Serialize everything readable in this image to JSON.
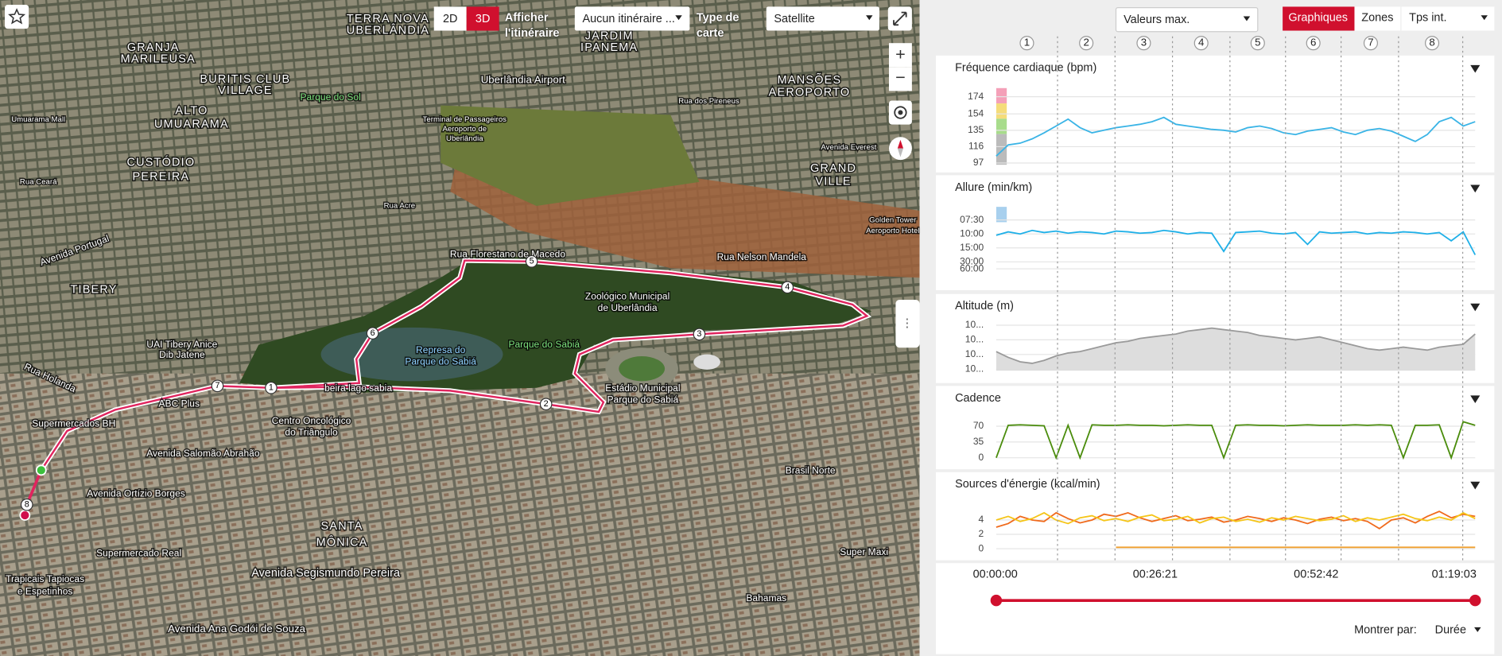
{
  "toolbar": {
    "view_2d": "2D",
    "view_3d": "3D",
    "show_route_label": "Afficher l'itinéraire",
    "route_select": "Aucun itinéraire ...",
    "map_type_label": "Type de carte",
    "map_type_select": "Satellite",
    "zoom_in": "+",
    "zoom_out": "−"
  },
  "map": {
    "labels": [
      "TERRA NOVA",
      "UBERLÂNDIA",
      "GRANJA",
      "MARILEUSA",
      "BURITIS CLUB",
      "VILLAGE",
      "ALTO",
      "UMUARAMA",
      "CUSTÓDIO",
      "PEREIRA",
      "TIBERY",
      "JARDIM",
      "IPANEMA",
      "Uberlândia Airport",
      "MANSÕES",
      "AEROPORTO",
      "GRAND",
      "VILLE",
      "Parque do Sol",
      "Terminal de Passageiros",
      "Aeroporto de",
      "Uberlândia",
      "Rua Florestano de Macedo",
      "Rua Nelson Mandela",
      "Zoológico Municipal",
      "de Uberlândia",
      "Represa do",
      "Parque do Sabiá",
      "Parque do Sabiá",
      "Estádio Municipal",
      "Parque do Sabiá",
      "beira lago sabia",
      "Centro Oncológico",
      "do Triângulo",
      "ABC Plus",
      "Supermercados BH",
      "UAI Tibery Anice",
      "Dib Jatene",
      "Avenida Salomão Abrahão",
      "Avenida Ortízio Borges",
      "SANTA",
      "MÔNICA",
      "Supermercado Real",
      "Avenida Segismundo Pereira",
      "Trapicais Tapiocas",
      "e Espetinhos",
      "Brasil Norte",
      "Super Maxi",
      "Bahamas",
      "Avenida Ana Godói de Souza",
      "Rua Holanda",
      "Avenida Portugal",
      "Golden Tower",
      "Aeroporto Hotel",
      "Avenida Everest",
      "Rua dos Pireneus",
      "Umuarama Mall",
      "Rua Acre",
      "Rua Ceará"
    ],
    "lap_markers": [
      "1",
      "2",
      "3",
      "4",
      "5",
      "6",
      "7",
      "8"
    ]
  },
  "sidebar": {
    "value_select": "Valeurs max.",
    "tabs": [
      "Graphiques",
      "Zones",
      "Tps int."
    ],
    "laps": [
      "1",
      "2",
      "3",
      "4",
      "5",
      "6",
      "7",
      "8"
    ],
    "panels": [
      {
        "title": "Fréquence cardiaque (bpm)",
        "ylim": [
          95,
          184
        ],
        "yticks": [
          174,
          154,
          135,
          116,
          97
        ],
        "fill": false,
        "series": [
          {
            "color": "#3ab4e6",
            "values": [
              105,
              118,
              120,
              125,
              132,
              140,
              148,
              138,
              132,
              135,
              138,
              140,
              142,
              145,
              150,
              142,
              140,
              138,
              136,
              135,
              133,
              138,
              140,
              137,
              132,
              130,
              134,
              136,
              138,
              133,
              130,
              135,
              137,
              134,
              128,
              122,
              130,
              145,
              150,
              140,
              145
            ]
          }
        ]
      },
      {
        "title": "Allure (min/km)",
        "ylim": [
          0,
          9.6
        ],
        "yticks": [
          {
            "value": 8,
            "label": "07:30"
          },
          {
            "value": 6,
            "label": "10:00"
          },
          {
            "value": 4,
            "label": "15:00"
          },
          {
            "value": 2,
            "label": "30:00"
          },
          {
            "value": 1,
            "label": "60:00"
          }
        ],
        "fill": false,
        "series": [
          {
            "color": "#1fb0e8",
            "values": [
              5.8,
              6.3,
              6.0,
              6.5,
              6.2,
              6.4,
              6.1,
              6.3,
              6.2,
              6.0,
              6.4,
              6.3,
              6.1,
              6.2,
              6.5,
              6.3,
              6.0,
              6.2,
              6.1,
              3.5,
              6.2,
              6.3,
              6.4,
              6.1,
              6.0,
              6.2,
              4.5,
              6.3,
              6.1,
              6.2,
              6.3,
              6.0,
              6.2,
              6.1,
              6.3,
              6.2,
              6.0,
              6.2,
              5.0,
              6.3,
              3.0
            ]
          }
        ]
      },
      {
        "title": "Altitude (m)",
        "ylim": [
          999,
          1033
        ],
        "yticks": [
          {
            "value": 1030,
            "label": "10..."
          },
          {
            "value": 1020,
            "label": "10..."
          },
          {
            "value": 1010,
            "label": "10..."
          },
          {
            "value": 1000,
            "label": "10..."
          }
        ],
        "fill": true,
        "series": [
          {
            "color": "#9a9a9a",
            "values": [
              1012,
              1008,
              1005,
              1004,
              1006,
              1009,
              1011,
              1012,
              1014,
              1016,
              1018,
              1019,
              1021,
              1022,
              1023,
              1024,
              1026,
              1027,
              1028,
              1027,
              1026,
              1025,
              1023,
              1022,
              1021,
              1020,
              1021,
              1022,
              1020,
              1018,
              1016,
              1014,
              1013,
              1014,
              1015,
              1014,
              1013,
              1015,
              1016,
              1017,
              1024
            ]
          }
        ]
      },
      {
        "title": "Cadence",
        "ylim": [
          0,
          85
        ],
        "yticks": [
          70,
          35,
          0
        ],
        "fill": false,
        "series": [
          {
            "color": "#4a8c0c",
            "values": [
              0,
              72,
              73,
              72,
              71,
              0,
              72,
              0,
              73,
              72,
              72,
              73,
              72,
              72,
              71,
              72,
              73,
              72,
              72,
              0,
              72,
              73,
              72,
              72,
              71,
              72,
              73,
              72,
              72,
              72,
              73,
              72,
              73,
              72,
              0,
              72,
              72,
              73,
              0,
              80,
              72
            ]
          }
        ]
      },
      {
        "title": "Sources d'énergie (kcal/min)",
        "ylim": [
          -0.27,
          5.73
        ],
        "yticks": [
          4,
          2,
          0
        ],
        "fill": false,
        "series": [
          {
            "color": "#f06a1c",
            "values": [
              3,
              3.5,
              4.5,
              4,
              3.8,
              5,
              4.2,
              3.6,
              4,
              4.8,
              4.5,
              5,
              4.3,
              3.8,
              4.2,
              4.6,
              3.9,
              4.1,
              4.4,
              3.7,
              4.0,
              4.5,
              4.2,
              3.8,
              4.3,
              4.0,
              3.5,
              4.1,
              4.4,
              3.9,
              4.2,
              3.8,
              2.8,
              4.0,
              4.3,
              3.6,
              4.5,
              5.2,
              4.3,
              4.8,
              4.5
            ]
          },
          {
            "color": "#f5c518",
            "values": [
              4,
              4.5,
              3.8,
              4.2,
              5,
              4.0,
              3.5,
              4.3,
              4.6,
              3.9,
              4.2,
              3.8,
              4.4,
              4.7,
              3.9,
              4.1,
              4.5,
              3.6,
              4.2,
              4.4,
              3.8,
              4.1,
              3.7,
              4.3,
              4.0,
              4.5,
              4.2,
              3.9,
              4.1,
              4.6,
              3.8,
              4.3,
              4.0,
              4.4,
              4.8,
              4.2,
              3.9,
              4.4,
              4.0,
              5.0,
              4.2
            ]
          },
          {
            "color": "#f0a030",
            "values": [
              null,
              null,
              0.2,
              0.2,
              0.2,
              0.2,
              0.2,
              0.2,
              0.2
            ]
          }
        ]
      }
    ],
    "time_ticks": [
      "00:00:00",
      "00:26:21",
      "00:52:42",
      "01:19:03"
    ],
    "show_by_label": "Montrer par:",
    "show_by_select": "Durée"
  }
}
